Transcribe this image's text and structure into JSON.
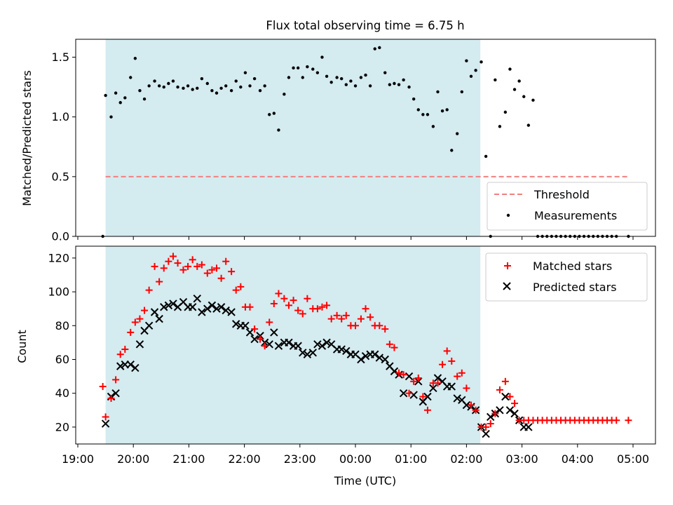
{
  "chart_data": {
    "title": "Flux total observing time = 6.75 h",
    "xlabel": "Time (UTC)",
    "x_unit": "hours (UTC, continuing past midnight)",
    "x_range": [
      "19:00",
      "05:00"
    ],
    "x_ticks": [
      "19:00",
      "20:00",
      "21:00",
      "22:00",
      "23:00",
      "00:00",
      "01:00",
      "02:00",
      "03:00",
      "04:00",
      "05:00"
    ],
    "colors": {
      "shade": "#d4ebf0",
      "threshold": "#f08080",
      "matched": "#ff0000",
      "predicted": "#000000",
      "measurements": "#000000"
    },
    "observing_window": [
      "19:30",
      "02:15"
    ],
    "panels": [
      {
        "type": "scatter",
        "ylabel": "Matched/Predicted stars",
        "ylim": [
          0,
          1.65
        ],
        "yticks": [
          "0.0",
          "0.5",
          "1.0",
          "1.5"
        ],
        "legend_position": "lower-right",
        "threshold": {
          "name": "Threshold",
          "value": 0.5,
          "x_range": [
            "19:30",
            "04:55"
          ]
        },
        "measurements": {
          "name": "Measurements",
          "x": [
            "19:27",
            "19:30",
            "19:36",
            "19:41",
            "19:46",
            "19:51",
            "19:57",
            "20:02",
            "20:07",
            "20:12",
            "20:17",
            "20:23",
            "20:28",
            "20:33",
            "20:38",
            "20:43",
            "20:48",
            "20:54",
            "20:59",
            "21:04",
            "21:09",
            "21:14",
            "21:20",
            "21:25",
            "21:30",
            "21:35",
            "21:40",
            "21:46",
            "21:51",
            "21:56",
            "22:01",
            "22:06",
            "22:11",
            "22:17",
            "22:22",
            "22:27",
            "22:32",
            "22:37",
            "22:43",
            "22:48",
            "22:53",
            "22:58",
            "23:03",
            "23:08",
            "23:14",
            "23:19",
            "23:24",
            "23:29",
            "23:34",
            "23:40",
            "23:45",
            "23:50",
            "23:55",
            "00:00",
            "00:06",
            "00:11",
            "00:16",
            "00:21",
            "00:26",
            "00:32",
            "00:37",
            "00:42",
            "00:47",
            "00:52",
            "00:58",
            "01:03",
            "01:08",
            "01:13",
            "01:18",
            "01:24",
            "01:29",
            "01:34",
            "01:39",
            "01:44",
            "01:50",
            "01:55",
            "02:00",
            "02:05",
            "02:10",
            "02:16",
            "02:21",
            "02:26",
            "02:31",
            "02:36",
            "02:42",
            "02:47",
            "02:52",
            "02:57",
            "03:02",
            "03:07",
            "03:12",
            "03:17",
            "03:22",
            "03:27",
            "03:32",
            "03:37",
            "03:42",
            "03:47",
            "03:52",
            "03:57",
            "04:02",
            "04:07",
            "04:12",
            "04:17",
            "04:22",
            "04:27",
            "04:32",
            "04:37",
            "04:42",
            "04:55"
          ],
          "y": [
            0.0,
            1.18,
            1.0,
            1.2,
            1.12,
            1.16,
            1.33,
            1.49,
            1.22,
            1.15,
            1.26,
            1.3,
            1.26,
            1.25,
            1.28,
            1.3,
            1.25,
            1.24,
            1.26,
            1.23,
            1.24,
            1.32,
            1.28,
            1.22,
            1.2,
            1.24,
            1.26,
            1.22,
            1.3,
            1.25,
            1.37,
            1.26,
            1.32,
            1.22,
            1.26,
            1.02,
            1.03,
            0.89,
            1.19,
            1.33,
            1.41,
            1.41,
            1.33,
            1.42,
            1.4,
            1.37,
            1.5,
            1.34,
            1.29,
            1.33,
            1.32,
            1.27,
            1.3,
            1.26,
            1.33,
            1.35,
            1.26,
            1.57,
            1.58,
            1.37,
            1.27,
            1.28,
            1.27,
            1.31,
            1.25,
            1.15,
            1.06,
            1.02,
            1.02,
            0.92,
            1.21,
            1.05,
            1.06,
            0.72,
            0.86,
            1.21,
            1.47,
            1.34,
            1.39,
            1.46,
            0.67,
            0.0,
            1.31,
            0.92,
            1.04,
            1.4,
            1.23,
            1.3,
            1.17,
            0.93,
            1.14,
            0.0,
            0.0,
            0.0,
            0.0,
            0.0,
            0.0,
            0.0,
            0.0,
            0.0,
            0.0,
            0.0,
            0.0,
            0.0,
            0.0,
            0.0,
            0.0,
            0.0,
            0.0,
            0.0
          ]
        }
      },
      {
        "type": "scatter",
        "ylabel": "Count",
        "ylim": [
          10,
          127
        ],
        "yticks": [
          "20",
          "40",
          "60",
          "80",
          "100",
          "120"
        ],
        "legend_position": "upper-right",
        "series": [
          {
            "name": "Matched stars",
            "marker": "+",
            "x": [
              "19:27",
              "19:30",
              "19:36",
              "19:41",
              "19:46",
              "19:51",
              "19:57",
              "20:02",
              "20:07",
              "20:12",
              "20:17",
              "20:23",
              "20:28",
              "20:33",
              "20:38",
              "20:43",
              "20:48",
              "20:54",
              "20:59",
              "21:04",
              "21:09",
              "21:14",
              "21:20",
              "21:25",
              "21:30",
              "21:35",
              "21:40",
              "21:46",
              "21:51",
              "21:56",
              "22:01",
              "22:06",
              "22:11",
              "22:17",
              "22:22",
              "22:27",
              "22:32",
              "22:37",
              "22:43",
              "22:48",
              "22:53",
              "22:58",
              "23:03",
              "23:08",
              "23:14",
              "23:19",
              "23:24",
              "23:29",
              "23:34",
              "23:40",
              "23:45",
              "23:50",
              "23:55",
              "00:00",
              "00:06",
              "00:11",
              "00:16",
              "00:21",
              "00:26",
              "00:32",
              "00:37",
              "00:42",
              "00:47",
              "00:52",
              "00:58",
              "01:03",
              "01:08",
              "01:13",
              "01:18",
              "01:24",
              "01:29",
              "01:34",
              "01:39",
              "01:44",
              "01:50",
              "01:55",
              "02:00",
              "02:05",
              "02:10",
              "02:16",
              "02:21",
              "02:26",
              "02:31",
              "02:36",
              "02:42",
              "02:47",
              "02:52",
              "02:57",
              "03:02",
              "03:07",
              "03:12",
              "03:17",
              "03:22",
              "03:27",
              "03:32",
              "03:37",
              "03:42",
              "03:47",
              "03:52",
              "03:57",
              "04:02",
              "04:07",
              "04:12",
              "04:17",
              "04:22",
              "04:27",
              "04:32",
              "04:37",
              "04:42",
              "04:55"
            ],
            "y": [
              44,
              26,
              37,
              48,
              63,
              66,
              76,
              82,
              84,
              89,
              101,
              115,
              106,
              114,
              118,
              121,
              117,
              113,
              115,
              119,
              115,
              116,
              111,
              113,
              114,
              108,
              118,
              112,
              101,
              103,
              91,
              91,
              78,
              72,
              68,
              82,
              93,
              99,
              96,
              92,
              95,
              89,
              87,
              96,
              90,
              90,
              91,
              92,
              84,
              86,
              84,
              86,
              80,
              80,
              84,
              90,
              85,
              80,
              80,
              78,
              69,
              67,
              52,
              51,
              40,
              47,
              49,
              38,
              30,
              46,
              46,
              57,
              65,
              59,
              50,
              52,
              43,
              33,
              30,
              20,
              20,
              22,
              28,
              42,
              47,
              38,
              34,
              24,
              24,
              24,
              24,
              24,
              24,
              24,
              24,
              24,
              24,
              24,
              24,
              24,
              24,
              24,
              24,
              24,
              24,
              24,
              24,
              24,
              24,
              24
            ]
          },
          {
            "name": "Predicted stars",
            "marker": "x",
            "x": [
              "19:30",
              "19:36",
              "19:41",
              "19:46",
              "19:51",
              "19:57",
              "20:02",
              "20:07",
              "20:12",
              "20:17",
              "20:23",
              "20:28",
              "20:33",
              "20:38",
              "20:43",
              "20:48",
              "20:54",
              "20:59",
              "21:04",
              "21:09",
              "21:14",
              "21:20",
              "21:25",
              "21:30",
              "21:35",
              "21:40",
              "21:46",
              "21:51",
              "21:56",
              "22:01",
              "22:06",
              "22:11",
              "22:17",
              "22:22",
              "22:27",
              "22:32",
              "22:37",
              "22:43",
              "22:48",
              "22:53",
              "22:58",
              "23:03",
              "23:08",
              "23:14",
              "23:19",
              "23:24",
              "23:29",
              "23:34",
              "23:40",
              "23:45",
              "23:50",
              "23:55",
              "00:00",
              "00:06",
              "00:11",
              "00:16",
              "00:21",
              "00:26",
              "00:32",
              "00:37",
              "00:42",
              "00:47",
              "00:52",
              "00:58",
              "01:03",
              "01:08",
              "01:13",
              "01:18",
              "01:24",
              "01:29",
              "01:34",
              "01:39",
              "01:44",
              "01:50",
              "01:55",
              "02:00",
              "02:05",
              "02:10",
              "02:16",
              "02:21",
              "02:26",
              "02:31",
              "02:36",
              "02:42",
              "02:47",
              "02:52",
              "02:57",
              "03:02",
              "03:07"
            ],
            "y": [
              22,
              38,
              40,
              56,
              57,
              57,
              55,
              69,
              77,
              80,
              88,
              84,
              91,
              92,
              93,
              91,
              94,
              91,
              91,
              96,
              88,
              90,
              92,
              90,
              91,
              89,
              88,
              81,
              80,
              80,
              76,
              72,
              74,
              70,
              69,
              76,
              68,
              70,
              70,
              68,
              68,
              64,
              63,
              64,
              69,
              68,
              70,
              69,
              66,
              66,
              65,
              63,
              63,
              60,
              62,
              63,
              63,
              61,
              60,
              56,
              53,
              51,
              40,
              50,
              39,
              47,
              35,
              38,
              43,
              49,
              47,
              44,
              44,
              37,
              36,
              33,
              32,
              30,
              20,
              16,
              26,
              28,
              30,
              38,
              30,
              28,
              24,
              20,
              20
            ]
          }
        ]
      }
    ]
  }
}
